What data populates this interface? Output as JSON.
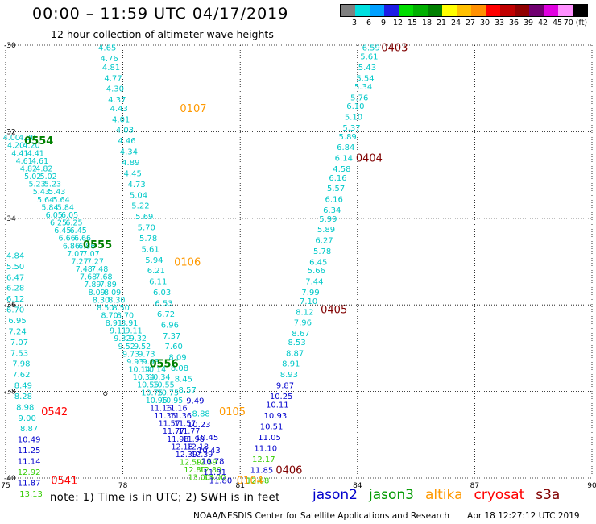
{
  "header": {
    "title": "00:00 – 11:59 UTC 04/17/2019",
    "subtitle": "12 hour collection of altimeter wave heights"
  },
  "colorbar": {
    "colors": [
      "#808080",
      "#00e0e0",
      "#00a0ff",
      "#1e1ee6",
      "#00dd00",
      "#00b000",
      "#008000",
      "#ffff00",
      "#ffc000",
      "#ff9000",
      "#ff0000",
      "#c00000",
      "#900000",
      "#700070",
      "#e000e0",
      "#ff90ff",
      "#000000"
    ],
    "labels": [
      "3",
      "6",
      "9",
      "12",
      "15",
      "18",
      "21",
      "24",
      "27",
      "30",
      "33",
      "36",
      "39",
      "42",
      "45",
      "70 (ft)"
    ]
  },
  "map": {
    "lon_ticks": [
      "75",
      "78",
      "81",
      "84",
      "87",
      "90"
    ],
    "lat_ticks": [
      "-30",
      "-32",
      "-34",
      "-36",
      "-38",
      "-40"
    ],
    "lon_range": [
      75,
      90
    ],
    "lat_range": [
      -30,
      -40
    ]
  },
  "chart_data": {
    "type": "scatter",
    "xlabel": "",
    "ylabel": "",
    "xlim": [
      75,
      90
    ],
    "ylim": [
      -40,
      -30
    ],
    "units": "ft",
    "track_labels": [
      {
        "text": "0403",
        "lon": 84.95,
        "lat": -30.05,
        "color": "#800000"
      },
      {
        "text": "0404",
        "lon": 84.3,
        "lat": -32.6,
        "color": "#800000"
      },
      {
        "text": "0405",
        "lon": 83.4,
        "lat": -36.1,
        "color": "#800000"
      },
      {
        "text": "0406",
        "lon": 82.25,
        "lat": -39.8,
        "color": "#800000"
      },
      {
        "text": "0107",
        "lon": 79.8,
        "lat": -31.45,
        "color": "#ff9900"
      },
      {
        "text": "0106",
        "lon": 79.65,
        "lat": -35.0,
        "color": "#ff9900"
      },
      {
        "text": "0105",
        "lon": 80.8,
        "lat": -38.45,
        "color": "#ff9900"
      },
      {
        "text": "0104",
        "lon": 81.25,
        "lat": -40.05,
        "color": "#ff9900"
      },
      {
        "text": "0554",
        "lon": 75.85,
        "lat": -32.2,
        "color": "#008000"
      },
      {
        "text": "0555",
        "lon": 77.35,
        "lat": -34.6,
        "color": "#008000"
      },
      {
        "text": "0556",
        "lon": 79.05,
        "lat": -37.35,
        "color": "#008000"
      },
      {
        "text": "0542",
        "lon": 76.25,
        "lat": -38.45,
        "color": "#ff0000"
      },
      {
        "text": "0541",
        "lon": 76.5,
        "lat": -40.05,
        "color": "#ff0000"
      }
    ],
    "points": [
      {
        "t": "6.59",
        "lon": 84.35,
        "lat": -30.05,
        "c": "#00c8c8"
      },
      {
        "t": "5.61",
        "lon": 84.3,
        "lat": -30.25,
        "c": "#00c8c8"
      },
      {
        "t": "5.43",
        "lon": 84.25,
        "lat": -30.5,
        "c": "#00c8c8"
      },
      {
        "t": "5.54",
        "lon": 84.2,
        "lat": -30.75,
        "c": "#00c8c8"
      },
      {
        "t": "5.34",
        "lon": 84.15,
        "lat": -30.95,
        "c": "#00c8c8"
      },
      {
        "t": "5.76",
        "lon": 84.05,
        "lat": -31.2,
        "c": "#00c8c8"
      },
      {
        "t": "6.10",
        "lon": 83.95,
        "lat": -31.4,
        "c": "#00c8c8"
      },
      {
        "t": "5.10",
        "lon": 83.9,
        "lat": -31.65,
        "c": "#00c8c8"
      },
      {
        "t": "5.37",
        "lon": 83.85,
        "lat": -31.9,
        "c": "#00c8c8"
      },
      {
        "t": "5.89",
        "lon": 83.75,
        "lat": -32.1,
        "c": "#00c8c8"
      },
      {
        "t": "6.84",
        "lon": 83.7,
        "lat": -32.35,
        "c": "#00c8c8"
      },
      {
        "t": "6.14",
        "lon": 83.65,
        "lat": -32.6,
        "c": "#00c8c8"
      },
      {
        "t": "4.58",
        "lon": 83.6,
        "lat": -32.85,
        "c": "#00c8c8"
      },
      {
        "t": "6.16",
        "lon": 83.5,
        "lat": -33.05,
        "c": "#00c8c8"
      },
      {
        "t": "5.57",
        "lon": 83.45,
        "lat": -33.3,
        "c": "#00c8c8"
      },
      {
        "t": "6.16",
        "lon": 83.4,
        "lat": -33.55,
        "c": "#00c8c8"
      },
      {
        "t": "6.34",
        "lon": 83.35,
        "lat": -33.8,
        "c": "#00c8c8"
      },
      {
        "t": "5.99",
        "lon": 83.25,
        "lat": -34.0,
        "c": "#00c8c8"
      },
      {
        "t": "5.89",
        "lon": 83.2,
        "lat": -34.25,
        "c": "#00c8c8"
      },
      {
        "t": "6.27",
        "lon": 83.15,
        "lat": -34.5,
        "c": "#00c8c8"
      },
      {
        "t": "5.78",
        "lon": 83.1,
        "lat": -34.75,
        "c": "#00c8c8"
      },
      {
        "t": "6.45",
        "lon": 83.0,
        "lat": -35.0,
        "c": "#00c8c8"
      },
      {
        "t": "5.66",
        "lon": 82.95,
        "lat": -35.2,
        "c": "#00c8c8"
      },
      {
        "t": "7.44",
        "lon": 82.9,
        "lat": -35.45,
        "c": "#00c8c8"
      },
      {
        "t": "7.99",
        "lon": 82.8,
        "lat": -35.7,
        "c": "#00c8c8"
      },
      {
        "t": "7.10",
        "lon": 82.75,
        "lat": -35.9,
        "c": "#00c8c8"
      },
      {
        "t": "8.12",
        "lon": 82.65,
        "lat": -36.15,
        "c": "#00c8c8"
      },
      {
        "t": "7.96",
        "lon": 82.6,
        "lat": -36.4,
        "c": "#00c8c8"
      },
      {
        "t": "8.67",
        "lon": 82.55,
        "lat": -36.65,
        "c": "#00c8c8"
      },
      {
        "t": "8.53",
        "lon": 82.45,
        "lat": -36.85,
        "c": "#00c8c8"
      },
      {
        "t": "8.87",
        "lon": 82.4,
        "lat": -37.1,
        "c": "#00c8c8"
      },
      {
        "t": "8.91",
        "lon": 82.3,
        "lat": -37.35,
        "c": "#00c8c8"
      },
      {
        "t": "8.93",
        "lon": 82.25,
        "lat": -37.6,
        "c": "#00c8c8"
      },
      {
        "t": "9.87",
        "lon": 82.15,
        "lat": -37.85,
        "c": "#0000cc"
      },
      {
        "t": "10.25",
        "lon": 82.05,
        "lat": -38.1,
        "c": "#0000cc"
      },
      {
        "t": "10.11",
        "lon": 81.95,
        "lat": -38.3,
        "c": "#0000cc"
      },
      {
        "t": "10.93",
        "lon": 81.9,
        "lat": -38.55,
        "c": "#0000cc"
      },
      {
        "t": "10.51",
        "lon": 81.8,
        "lat": -38.8,
        "c": "#0000cc"
      },
      {
        "t": "11.05",
        "lon": 81.75,
        "lat": -39.05,
        "c": "#0000cc"
      },
      {
        "t": "11.10",
        "lon": 81.65,
        "lat": -39.3,
        "c": "#0000cc"
      },
      {
        "t": "12.17",
        "lon": 81.6,
        "lat": -39.55,
        "c": "#33cc00"
      },
      {
        "t": "11.85",
        "lon": 81.55,
        "lat": -39.8,
        "c": "#0000cc"
      },
      {
        "t": "12.68",
        "lon": 81.45,
        "lat": -40.05,
        "c": "#33cc00"
      },
      {
        "t": "4.65",
        "lon": 77.6,
        "lat": -30.05,
        "c": "#00c8c8"
      },
      {
        "t": "4.76",
        "lon": 77.65,
        "lat": -30.3,
        "c": "#00c8c8"
      },
      {
        "t": "4.81",
        "lon": 77.7,
        "lat": -30.5,
        "c": "#00c8c8"
      },
      {
        "t": "4.77",
        "lon": 77.75,
        "lat": -30.75,
        "c": "#00c8c8"
      },
      {
        "t": "4.30",
        "lon": 77.8,
        "lat": -31.0,
        "c": "#00c8c8"
      },
      {
        "t": "4.37",
        "lon": 77.85,
        "lat": -31.25,
        "c": "#00c8c8"
      },
      {
        "t": "4.43",
        "lon": 77.9,
        "lat": -31.45,
        "c": "#00c8c8"
      },
      {
        "t": "4.01",
        "lon": 77.95,
        "lat": -31.7,
        "c": "#00c8c8"
      },
      {
        "t": "4.03",
        "lon": 78.05,
        "lat": -31.95,
        "c": "#00c8c8"
      },
      {
        "t": "4.46",
        "lon": 78.1,
        "lat": -32.2,
        "c": "#00c8c8"
      },
      {
        "t": "4.34",
        "lon": 78.15,
        "lat": -32.45,
        "c": "#00c8c8"
      },
      {
        "t": "4.89",
        "lon": 78.2,
        "lat": -32.7,
        "c": "#00c8c8"
      },
      {
        "t": "4.45",
        "lon": 78.25,
        "lat": -32.95,
        "c": "#00c8c8"
      },
      {
        "t": "4.73",
        "lon": 78.35,
        "lat": -33.2,
        "c": "#00c8c8"
      },
      {
        "t": "5.04",
        "lon": 78.4,
        "lat": -33.45,
        "c": "#00c8c8"
      },
      {
        "t": "5.22",
        "lon": 78.45,
        "lat": -33.7,
        "c": "#00c8c8"
      },
      {
        "t": "5.69",
        "lon": 78.55,
        "lat": -33.95,
        "c": "#00c8c8"
      },
      {
        "t": "5.70",
        "lon": 78.6,
        "lat": -34.2,
        "c": "#00c8c8"
      },
      {
        "t": "5.78",
        "lon": 78.65,
        "lat": -34.45,
        "c": "#00c8c8"
      },
      {
        "t": "5.61",
        "lon": 78.7,
        "lat": -34.7,
        "c": "#00c8c8"
      },
      {
        "t": "5.94",
        "lon": 78.8,
        "lat": -34.95,
        "c": "#00c8c8"
      },
      {
        "t": "6.21",
        "lon": 78.85,
        "lat": -35.2,
        "c": "#00c8c8"
      },
      {
        "t": "6.11",
        "lon": 78.9,
        "lat": -35.45,
        "c": "#00c8c8"
      },
      {
        "t": "6.03",
        "lon": 79.0,
        "lat": -35.7,
        "c": "#00c8c8"
      },
      {
        "t": "6.53",
        "lon": 79.05,
        "lat": -35.95,
        "c": "#00c8c8"
      },
      {
        "t": "6.72",
        "lon": 79.1,
        "lat": -36.2,
        "c": "#00c8c8"
      },
      {
        "t": "6.96",
        "lon": 79.2,
        "lat": -36.45,
        "c": "#00c8c8"
      },
      {
        "t": "7.37",
        "lon": 79.25,
        "lat": -36.7,
        "c": "#00c8c8"
      },
      {
        "t": "7.60",
        "lon": 79.3,
        "lat": -36.95,
        "c": "#00c8c8"
      },
      {
        "t": "8.09",
        "lon": 79.4,
        "lat": -37.2,
        "c": "#00c8c8"
      },
      {
        "t": "8.08",
        "lon": 79.45,
        "lat": -37.45,
        "c": "#00c8c8"
      },
      {
        "t": "8.45",
        "lon": 79.55,
        "lat": -37.7,
        "c": "#00c8c8"
      },
      {
        "t": "8.57",
        "lon": 79.65,
        "lat": -37.95,
        "c": "#00c8c8"
      },
      {
        "t": "9.49",
        "lon": 79.85,
        "lat": -38.2,
        "c": "#0000cc"
      },
      {
        "t": "8.88",
        "lon": 80.0,
        "lat": -38.5,
        "c": "#00c8c8"
      },
      {
        "t": "10.23",
        "lon": 79.95,
        "lat": -38.75,
        "c": "#0000cc"
      },
      {
        "t": "10.45",
        "lon": 80.15,
        "lat": -39.05,
        "c": "#0000cc"
      },
      {
        "t": "10.43",
        "lon": 80.2,
        "lat": -39.35,
        "c": "#0000cc"
      },
      {
        "t": "10.78",
        "lon": 80.3,
        "lat": -39.6,
        "c": "#0000cc"
      },
      {
        "t": "11.31",
        "lon": 80.35,
        "lat": -39.85,
        "c": "#0000cc"
      },
      {
        "t": "11.80",
        "lon": 80.5,
        "lat": -40.05,
        "c": "#0000cc"
      },
      {
        "t": "4.84",
        "lon": 75.25,
        "lat": -34.85,
        "c": "#00c8c8"
      },
      {
        "t": "5.50",
        "lon": 75.25,
        "lat": -35.1,
        "c": "#00c8c8"
      },
      {
        "t": "6.47",
        "lon": 75.25,
        "lat": -35.35,
        "c": "#00c8c8"
      },
      {
        "t": "6.28",
        "lon": 75.25,
        "lat": -35.6,
        "c": "#00c8c8"
      },
      {
        "t": "6.12",
        "lon": 75.25,
        "lat": -35.85,
        "c": "#00c8c8"
      },
      {
        "t": "6.70",
        "lon": 75.25,
        "lat": -36.1,
        "c": "#00c8c8"
      },
      {
        "t": "6.95",
        "lon": 75.3,
        "lat": -36.35,
        "c": "#00c8c8"
      },
      {
        "t": "7.24",
        "lon": 75.3,
        "lat": -36.6,
        "c": "#00c8c8"
      },
      {
        "t": "7.07",
        "lon": 75.35,
        "lat": -36.85,
        "c": "#00c8c8"
      },
      {
        "t": "7.53",
        "lon": 75.35,
        "lat": -37.1,
        "c": "#00c8c8"
      },
      {
        "t": "7.98",
        "lon": 75.4,
        "lat": -37.35,
        "c": "#00c8c8"
      },
      {
        "t": "7.62",
        "lon": 75.4,
        "lat": -37.6,
        "c": "#00c8c8"
      },
      {
        "t": "8.49",
        "lon": 75.45,
        "lat": -37.85,
        "c": "#00c8c8"
      },
      {
        "t": "8.28",
        "lon": 75.45,
        "lat": -38.1,
        "c": "#00c8c8"
      },
      {
        "t": "8.98",
        "lon": 75.5,
        "lat": -38.35,
        "c": "#00c8c8"
      },
      {
        "t": "9.00",
        "lon": 75.55,
        "lat": -38.6,
        "c": "#00c8c8"
      },
      {
        "t": "8.87",
        "lon": 75.6,
        "lat": -38.85,
        "c": "#00c8c8"
      },
      {
        "t": "10.49",
        "lon": 75.6,
        "lat": -39.1,
        "c": "#0000cc"
      },
      {
        "t": "11.25",
        "lon": 75.6,
        "lat": -39.35,
        "c": "#0000cc"
      },
      {
        "t": "11.14",
        "lon": 75.6,
        "lat": -39.6,
        "c": "#0000cc"
      },
      {
        "t": "12.92",
        "lon": 75.6,
        "lat": -39.85,
        "c": "#33cc00"
      },
      {
        "t": "11.87",
        "lon": 75.6,
        "lat": -40.1,
        "c": "#0000cc"
      },
      {
        "t": "13.13",
        "lon": 75.65,
        "lat": -40.35,
        "c": "#33cc00"
      }
    ],
    "diag_tracks": [
      {
        "start_lon": 75.15,
        "start_lat": -32.2,
        "end_lon": 79.95,
        "end_lat": -40.05,
        "steps": 44
      },
      {
        "start_lon": 75.55,
        "start_lat": -32.2,
        "end_lon": 80.35,
        "end_lat": -40.05,
        "steps": 44
      }
    ],
    "open_dot": {
      "lon": 77.55,
      "lat": -38.05
    }
  },
  "note": "note: 1) Time is in UTC; 2) SWH is in feet",
  "legend": [
    {
      "name": "jason2",
      "color": "#0000cc"
    },
    {
      "name": "jason3",
      "color": "#009900"
    },
    {
      "name": "altika",
      "color": "#ff9900"
    },
    {
      "name": "cryosat",
      "color": "#ff0000"
    },
    {
      "name": "s3a",
      "color": "#800000"
    }
  ],
  "footer": "NOAA/NESDIS Center for Satellite Applications and Research",
  "timestamp": "Apr 18 12:27:12 UTC 2019"
}
